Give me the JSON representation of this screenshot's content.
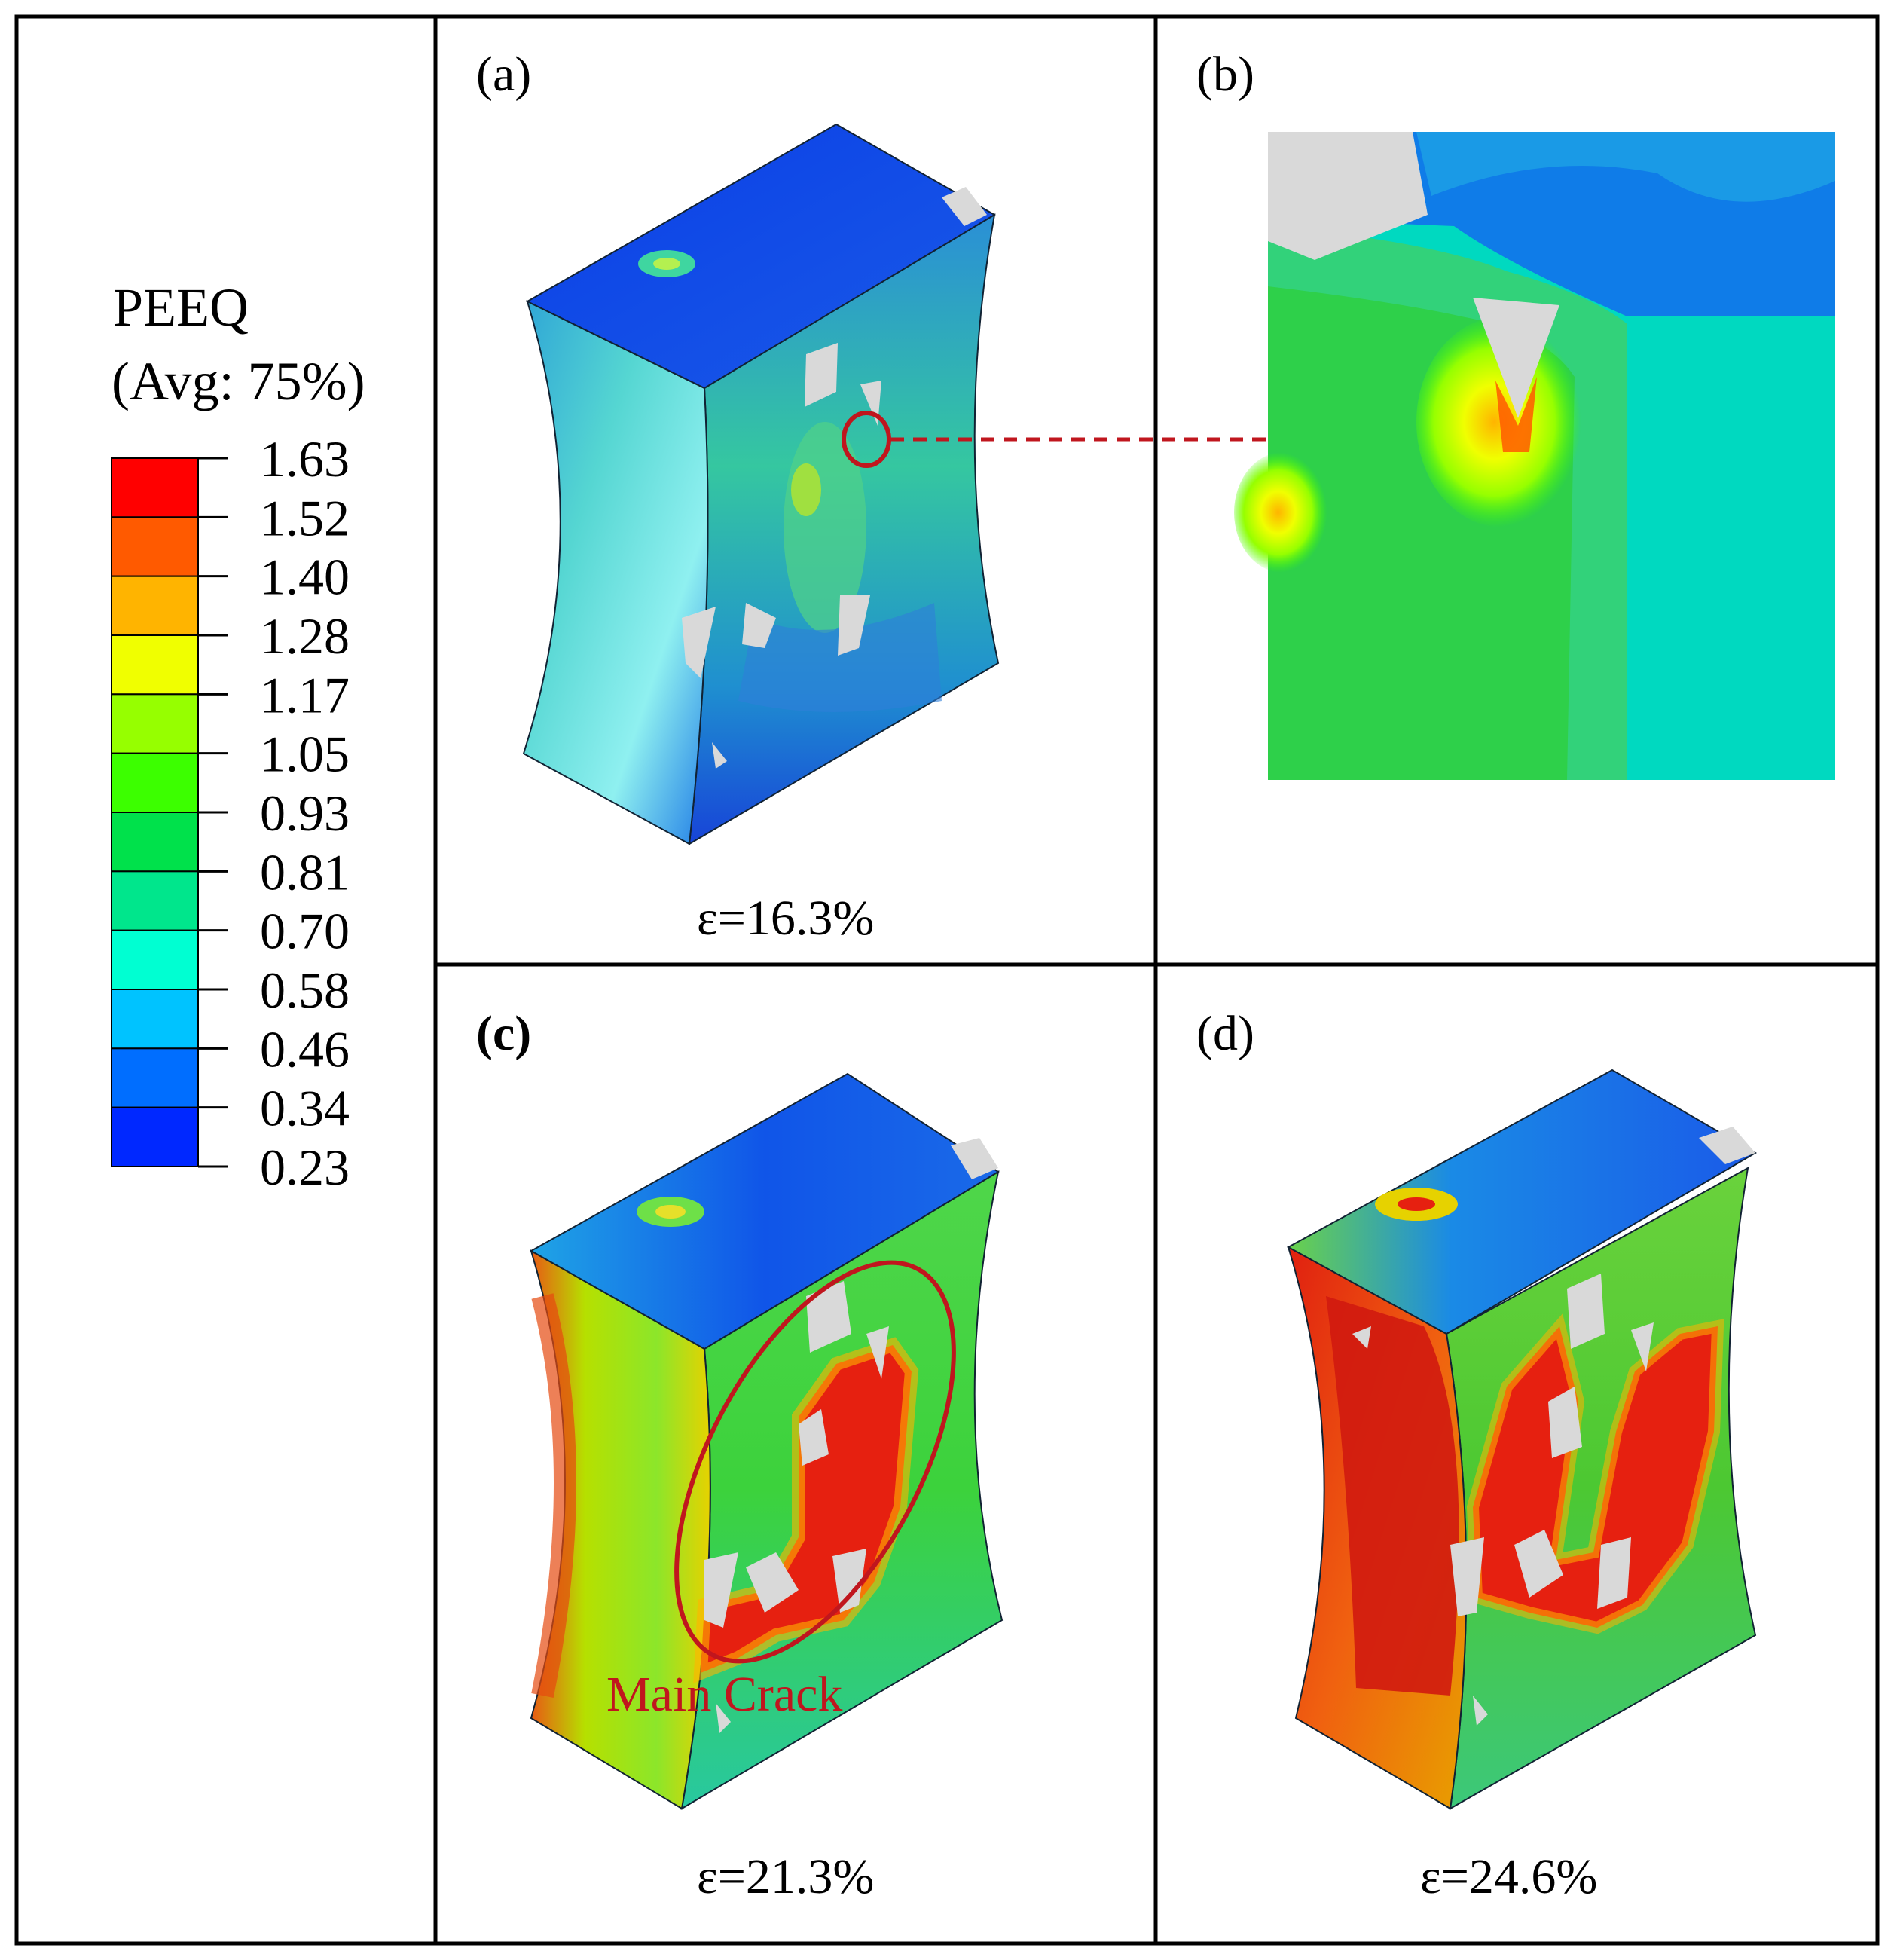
{
  "legend": {
    "title": "PEEQ",
    "subtitle": "(Avg: 75%)",
    "values": [
      "1.63",
      "1.52",
      "1.40",
      "1.28",
      "1.17",
      "1.05",
      "0.93",
      "0.81",
      "0.70",
      "0.58",
      "0.46",
      "0.34",
      "0.23"
    ],
    "colors": [
      "#ff0000",
      "#ff5a00",
      "#ffb400",
      "#f0ff00",
      "#96ff00",
      "#3cff00",
      "#00e14b",
      "#00e68c",
      "#00ffd2",
      "#00c3ff",
      "#006eff",
      "#0028ff"
    ]
  },
  "panels": {
    "a": {
      "label": "(a)",
      "strain": "ε=16.3%"
    },
    "b": {
      "label": "(b)"
    },
    "c": {
      "label": "(c)",
      "strain": "ε=21.3%",
      "annotation": "Main Crack"
    },
    "d": {
      "label": "(d)",
      "strain": "ε=24.6%"
    }
  },
  "colors": {
    "annotation": "#c0161e",
    "inclusion": "#d9d9d9"
  }
}
